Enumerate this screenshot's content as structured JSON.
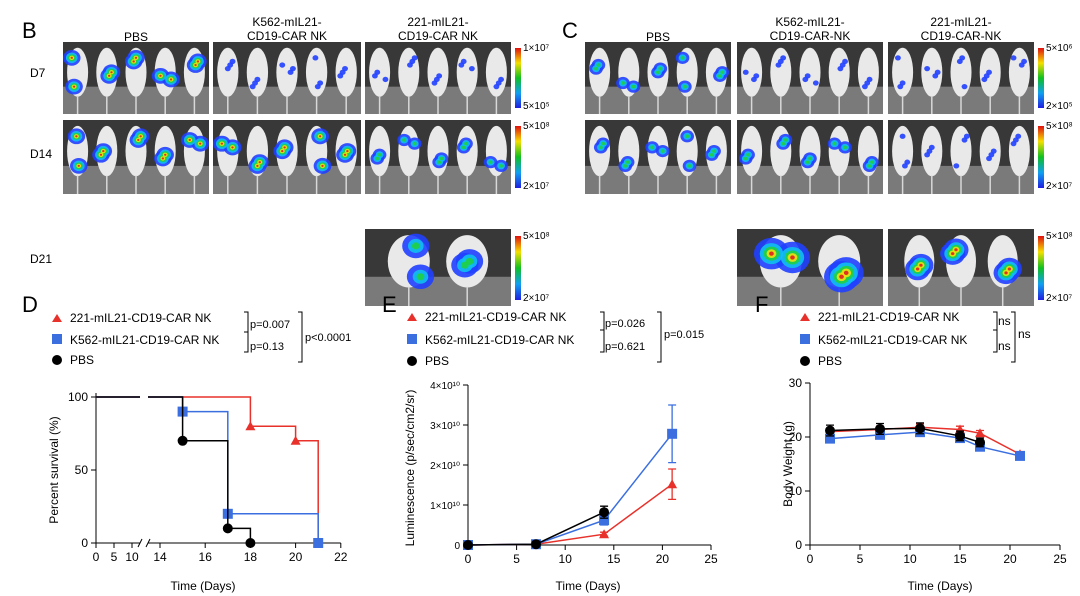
{
  "panelB": {
    "label": "B",
    "groups": [
      "PBS",
      "K562-mIL21-\nCD19-CAR NK",
      "221-mIL21-\nCD19-CAR NK"
    ],
    "days": [
      "D7",
      "D14",
      "D21"
    ],
    "scales": [
      {
        "max": "1×10⁷",
        "min": "5×10⁵"
      },
      {
        "max": "5×10⁸",
        "min": "2×10⁷"
      },
      {
        "max": "5×10⁸",
        "min": "2×10⁷"
      }
    ]
  },
  "panelC": {
    "label": "C",
    "groups": [
      "PBS",
      "K562-mIL21-\nCD19-CAR-NK",
      "221-mIL21-\nCD19-CAR-NK"
    ],
    "scales": [
      {
        "max": "5×10⁶",
        "min": "2×10⁵"
      },
      {
        "max": "5×10⁸",
        "min": "2×10⁷"
      },
      {
        "max": "5×10⁸",
        "min": "2×10⁷"
      }
    ]
  },
  "colors": {
    "red": "#e8312a",
    "blue": "#3b6fe0",
    "black": "#000000"
  },
  "chart_data": [
    {
      "panel": "D",
      "type": "line",
      "subtype": "survival-step",
      "xlabel": "Time (Days)",
      "ylabel": "Percent survival (%)",
      "xticks_left": [
        "0",
        "5",
        "10"
      ],
      "xticks_right": [
        "14",
        "16",
        "18",
        "20",
        "22"
      ],
      "yticks": [
        "0",
        "50",
        "100"
      ],
      "ylim": [
        0,
        100
      ],
      "legend": [
        "221-mIL21-CD19-CAR NK",
        "K562-mIL21-CD19-CAR NK",
        "PBS"
      ],
      "stats": [
        "p=0.007",
        "p=0.13",
        "p<0.0001"
      ],
      "series": [
        {
          "name": "221-mIL21-CD19-CAR NK",
          "color": "#e8312a",
          "marker": "triangle",
          "steps": [
            [
              0,
              100
            ],
            [
              18,
              80
            ],
            [
              20,
              70
            ],
            [
              21,
              0
            ]
          ]
        },
        {
          "name": "K562-mIL21-CD19-CAR NK",
          "color": "#3b6fe0",
          "marker": "square",
          "steps": [
            [
              0,
              100
            ],
            [
              15,
              90
            ],
            [
              17,
              20
            ],
            [
              21,
              0
            ]
          ]
        },
        {
          "name": "PBS",
          "color": "#000000",
          "marker": "circle",
          "steps": [
            [
              0,
              100
            ],
            [
              15,
              70
            ],
            [
              17,
              10
            ],
            [
              18,
              0
            ]
          ]
        }
      ]
    },
    {
      "panel": "E",
      "type": "line",
      "xlabel": "Time (Days)",
      "ylabel": "Luminescence (p/sec/cm2/sr)",
      "xticks": [
        "0",
        "5",
        "10",
        "15",
        "20",
        "25"
      ],
      "yticks": [
        "0",
        "1×10¹⁰",
        "2×10¹⁰",
        "3×10¹⁰",
        "4×10¹⁰"
      ],
      "xlim": [
        0,
        25
      ],
      "ylim": [
        0,
        4
      ],
      "yunit": "1e10",
      "legend": [
        "221-mIL21-CD19-CAR NK",
        "K562-mIL21-CD19-CAR NK",
        "PBS"
      ],
      "stats": [
        "p=0.026",
        "p=0.621",
        "p=0.015"
      ],
      "series": [
        {
          "name": "221-mIL21-CD19-CAR NK",
          "color": "#e8312a",
          "marker": "triangle",
          "x": [
            0,
            7,
            14,
            21
          ],
          "y": [
            0,
            0.02,
            0.27,
            1.52
          ],
          "err": [
            0,
            0,
            0.05,
            0.38
          ]
        },
        {
          "name": "K562-mIL21-CD19-CAR NK",
          "color": "#3b6fe0",
          "marker": "square",
          "x": [
            0,
            7,
            14,
            21
          ],
          "y": [
            0,
            0.02,
            0.62,
            2.78
          ],
          "err": [
            0,
            0,
            0.12,
            0.72
          ]
        },
        {
          "name": "PBS",
          "color": "#000000",
          "marker": "circle",
          "x": [
            0,
            7,
            14
          ],
          "y": [
            0,
            0.02,
            0.82
          ],
          "err": [
            0,
            0,
            0.15
          ]
        }
      ]
    },
    {
      "panel": "F",
      "type": "line",
      "xlabel": "Time (Days)",
      "ylabel": "Body Weight (g)",
      "xticks": [
        "0",
        "5",
        "10",
        "15",
        "20",
        "25"
      ],
      "yticks": [
        "0",
        "10",
        "20",
        "30"
      ],
      "xlim": [
        0,
        25
      ],
      "ylim": [
        0,
        30
      ],
      "legend": [
        "221-mIL21-CD19-CAR NK",
        "K562-mIL21-CD19-CAR NK",
        "PBS"
      ],
      "stats": [
        "ns",
        "ns",
        "ns"
      ],
      "series": [
        {
          "name": "221-mIL21-CD19-CAR NK",
          "color": "#e8312a",
          "marker": "triangle",
          "x": [
            2,
            7,
            11,
            15,
            17,
            21
          ],
          "y": [
            21.0,
            21.4,
            21.8,
            21.4,
            20.7,
            16.8
          ],
          "err": [
            0.6,
            0.6,
            0.6,
            0.6,
            0.5,
            0.4
          ]
        },
        {
          "name": "K562-mIL21-CD19-CAR NK",
          "color": "#3b6fe0",
          "marker": "square",
          "x": [
            2,
            7,
            11,
            15,
            17,
            21
          ],
          "y": [
            19.7,
            20.4,
            20.9,
            19.8,
            18.2,
            16.5
          ],
          "err": [
            0.6,
            0.6,
            0.6,
            0.7,
            0.6,
            0.4
          ]
        },
        {
          "name": "PBS",
          "color": "#000000",
          "marker": "circle",
          "x": [
            2,
            7,
            11,
            15,
            17
          ],
          "y": [
            21.2,
            21.5,
            21.6,
            20.2,
            19.0
          ],
          "err": [
            1.0,
            1.0,
            1.0,
            0.9,
            0.8
          ]
        }
      ]
    }
  ]
}
